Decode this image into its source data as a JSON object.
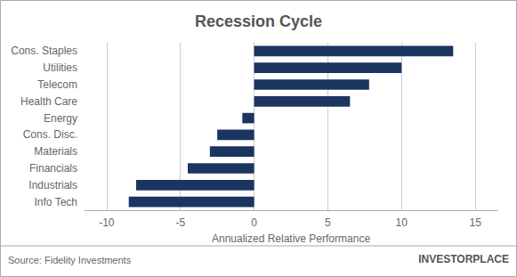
{
  "chart_data": {
    "type": "bar",
    "orientation": "horizontal",
    "title": "Recession Cycle",
    "xlabel": "Annualized Relative Performance",
    "categories": [
      "Info Tech",
      "Industrials",
      "Financials",
      "Materials",
      "Cons. Disc.",
      "Energy",
      "Health Care",
      "Telecom",
      "Utilities",
      "Cons. Staples"
    ],
    "values": [
      -8.5,
      -8.0,
      -4.5,
      -3.0,
      -2.5,
      -0.8,
      6.5,
      7.8,
      10.0,
      13.5
    ],
    "color": "#1a3560",
    "xlim": [
      -11.5,
      16.5
    ],
    "xticks": [
      -10,
      -5,
      0,
      5,
      10,
      15
    ],
    "grid": true,
    "annotations": [
      "Source: Fidelity Investments",
      "INVESTORPLACE"
    ]
  }
}
